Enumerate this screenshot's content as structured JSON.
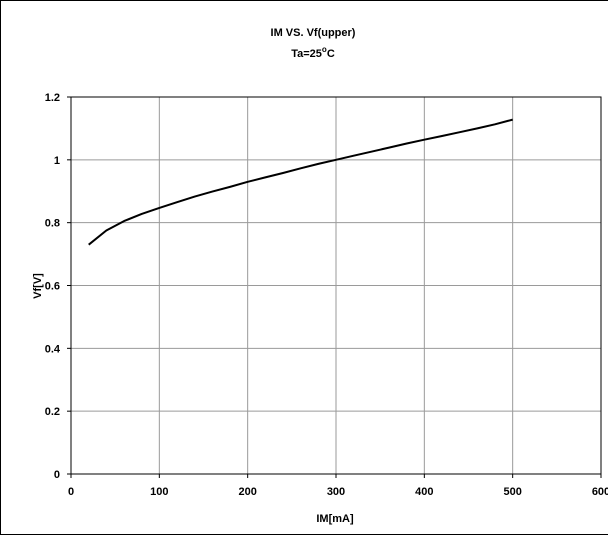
{
  "chart_data": {
    "type": "line",
    "title": "IM VS. Vf(upper)",
    "subtitle_prefix": "Ta=25",
    "subtitle_degree": "o",
    "subtitle_suffix": "C",
    "xlabel": "IM[mA]",
    "ylabel": "Vf[V]",
    "xlim": [
      0,
      600
    ],
    "ylim": [
      0,
      1.2
    ],
    "x_ticks": [
      0,
      100,
      200,
      300,
      400,
      500,
      600
    ],
    "y_ticks": [
      0,
      0.2,
      0.4,
      0.6,
      0.8,
      1,
      1.2
    ],
    "x_tick_labels": [
      "0",
      "100",
      "200",
      "300",
      "400",
      "500",
      "600"
    ],
    "y_tick_labels": [
      "0",
      "0.2",
      "0.4",
      "0.6",
      "0.8",
      "1",
      "1.2"
    ],
    "grid": true,
    "legend": "none",
    "series": [
      {
        "x": [
          20,
          40,
          60,
          80,
          100,
          120,
          140,
          160,
          180,
          200,
          220,
          240,
          260,
          280,
          300,
          320,
          340,
          360,
          380,
          400,
          420,
          440,
          460,
          480,
          500
        ],
        "y": [
          0.73,
          0.775,
          0.805,
          0.828,
          0.847,
          0.865,
          0.883,
          0.899,
          0.914,
          0.93,
          0.944,
          0.958,
          0.973,
          0.987,
          1.0,
          1.013,
          1.026,
          1.039,
          1.052,
          1.064,
          1.076,
          1.088,
          1.1,
          1.113,
          1.128
        ],
        "color": "#000000"
      }
    ]
  }
}
